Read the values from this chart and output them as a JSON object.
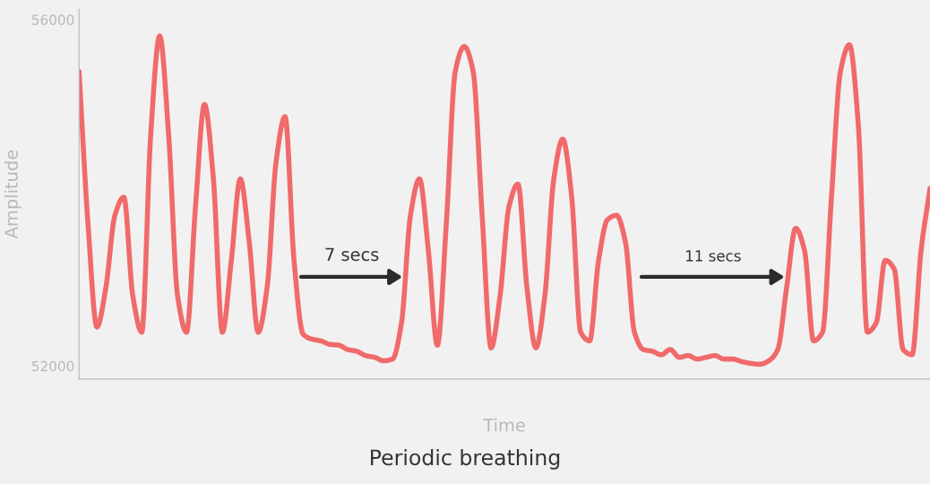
{
  "chart_data": {
    "type": "line",
    "title": "Periodic breathing",
    "xlabel": "Time",
    "ylabel": "Amplitude",
    "categories": [
      null,
      null,
      null,
      null,
      null,
      null,
      null,
      null,
      null,
      null,
      null,
      null,
      null,
      null,
      null,
      null,
      null,
      null,
      null,
      null,
      null,
      null,
      null,
      null,
      null,
      null,
      null,
      null,
      null,
      null,
      null,
      null,
      null,
      null,
      null,
      null,
      null,
      null,
      null,
      null,
      null,
      null,
      null,
      null,
      null,
      null,
      null,
      null,
      null,
      null,
      null,
      null,
      null,
      null,
      null,
      null,
      null,
      null,
      null,
      null,
      null,
      null,
      null,
      null,
      null,
      null,
      null,
      null,
      null,
      null,
      null,
      null,
      null,
      null,
      null,
      null,
      null,
      null,
      null,
      null,
      null,
      null,
      null,
      null,
      null,
      null,
      null,
      null,
      null,
      null,
      null,
      null,
      null,
      null,
      null,
      null
    ],
    "series": [
      {
        "color": "#f06a6a",
        "values": [
          55400,
          53640,
          52450,
          52910,
          53740,
          53950,
          52810,
          52390,
          54670,
          55810,
          54670,
          52810,
          52390,
          53840,
          55020,
          54160,
          52390,
          53220,
          54160,
          53430,
          52390,
          52910,
          54360,
          54880,
          53220,
          52370,
          52310,
          52290,
          52250,
          52240,
          52190,
          52170,
          52120,
          52100,
          52060,
          52080,
          52500,
          53740,
          54160,
          53330,
          52240,
          53640,
          55400,
          55690,
          55400,
          53740,
          52210,
          52810,
          53840,
          54100,
          52910,
          52210,
          52810,
          54160,
          54620,
          53950,
          52390,
          52290,
          53220,
          53690,
          53740,
          53430,
          52390,
          52190,
          52170,
          52130,
          52190,
          52100,
          52120,
          52080,
          52100,
          52120,
          52080,
          52080,
          52050,
          52030,
          52020,
          52060,
          52190,
          52910,
          53590,
          53330,
          52290,
          52390,
          53950,
          55400,
          55710,
          54780,
          52390,
          52500,
          53220,
          53120,
          52190,
          52130,
          53330,
          54050
        ]
      }
    ],
    "ylim": [
      51850,
      56120
    ],
    "yticks": [
      52000,
      56000
    ],
    "grid": false,
    "marker": "none",
    "line_style": "solid",
    "annotations": [
      "7 secs",
      "11 secs"
    ]
  }
}
